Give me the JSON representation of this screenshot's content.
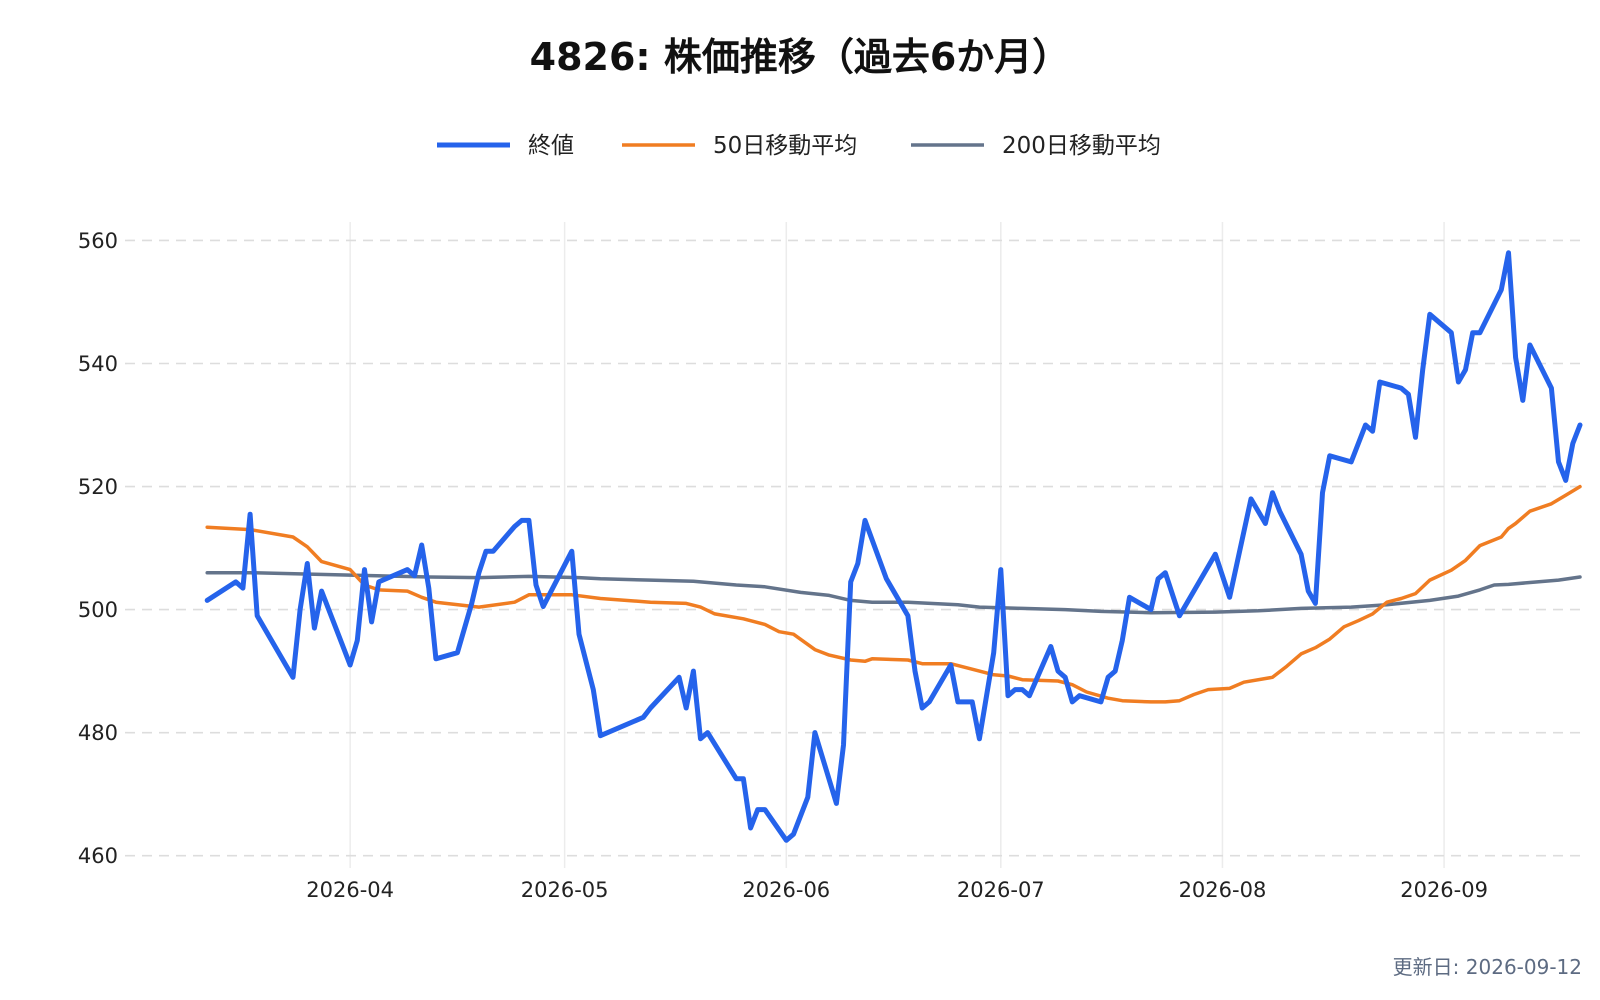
{
  "chart_data": {
    "type": "line",
    "title": "4826: 株価推移（過去6か月）",
    "xlabel": "",
    "ylabel": "",
    "x_range": [
      "2026-03-12",
      "2026-09-12"
    ],
    "ylim": [
      458,
      563
    ],
    "y_ticks": [
      460,
      480,
      500,
      520,
      540,
      560
    ],
    "x_ticks": [
      "2026-04-01",
      "2026-05-01",
      "2026-06-01",
      "2026-07-01",
      "2026-08-01",
      "2026-09-01"
    ],
    "x_tick_labels": [
      "2026-04",
      "2026-05",
      "2026-06",
      "2026-07",
      "2026-08",
      "2026-09"
    ],
    "grid": true,
    "legend_position": "top-center",
    "series": [
      {
        "name": "終値",
        "color": "#2563eb",
        "points": [
          [
            "2026-03-12",
            501.5
          ],
          [
            "2026-03-16",
            504.5
          ],
          [
            "2026-03-17",
            503.5
          ],
          [
            "2026-03-18",
            515.5
          ],
          [
            "2026-03-19",
            499
          ],
          [
            "2026-03-23",
            491
          ],
          [
            "2026-03-24",
            489
          ],
          [
            "2026-03-25",
            500
          ],
          [
            "2026-03-26",
            507.5
          ],
          [
            "2026-03-27",
            497
          ],
          [
            "2026-03-28",
            503
          ],
          [
            "2026-03-31",
            494
          ],
          [
            "2026-04-01",
            491
          ],
          [
            "2026-04-02",
            495
          ],
          [
            "2026-04-03",
            506.5
          ],
          [
            "2026-04-04",
            498
          ],
          [
            "2026-04-05",
            504.5
          ],
          [
            "2026-04-09",
            506.5
          ],
          [
            "2026-04-10",
            505.5
          ],
          [
            "2026-04-11",
            510.5
          ],
          [
            "2026-04-12",
            503.5
          ],
          [
            "2026-04-13",
            492
          ],
          [
            "2026-04-16",
            493
          ],
          [
            "2026-04-18",
            501
          ],
          [
            "2026-04-19",
            506
          ],
          [
            "2026-04-20",
            509.5
          ],
          [
            "2026-04-21",
            509.5
          ],
          [
            "2026-04-24",
            513.5
          ],
          [
            "2026-04-25",
            514.5
          ],
          [
            "2026-04-26",
            514.5
          ],
          [
            "2026-04-27",
            504
          ],
          [
            "2026-04-28",
            500.5
          ],
          [
            "2026-05-02",
            509.5
          ],
          [
            "2026-05-03",
            496
          ],
          [
            "2026-05-05",
            487
          ],
          [
            "2026-05-06",
            479.5
          ],
          [
            "2026-05-12",
            482.5
          ],
          [
            "2026-05-13",
            484
          ],
          [
            "2026-05-17",
            489
          ],
          [
            "2026-05-18",
            484
          ],
          [
            "2026-05-19",
            490
          ],
          [
            "2026-05-20",
            479
          ],
          [
            "2026-05-21",
            480
          ],
          [
            "2026-05-25",
            472.5
          ],
          [
            "2026-05-26",
            472.5
          ],
          [
            "2026-05-27",
            464.5
          ],
          [
            "2026-05-28",
            467.5
          ],
          [
            "2026-05-29",
            467.5
          ],
          [
            "2026-06-01",
            462.5
          ],
          [
            "2026-06-02",
            463.5
          ],
          [
            "2026-06-04",
            469.5
          ],
          [
            "2026-06-05",
            480
          ],
          [
            "2026-06-08",
            468.5
          ],
          [
            "2026-06-09",
            478
          ],
          [
            "2026-06-10",
            504.5
          ],
          [
            "2026-06-11",
            507.5
          ],
          [
            "2026-06-12",
            514.5
          ],
          [
            "2026-06-15",
            505
          ],
          [
            "2026-06-18",
            499
          ],
          [
            "2026-06-19",
            490
          ],
          [
            "2026-06-20",
            484
          ],
          [
            "2026-06-21",
            485
          ],
          [
            "2026-06-24",
            491
          ],
          [
            "2026-06-25",
            485
          ],
          [
            "2026-06-27",
            485
          ],
          [
            "2026-06-28",
            479
          ],
          [
            "2026-06-30",
            493
          ],
          [
            "2026-07-01",
            506.5
          ],
          [
            "2026-07-02",
            486
          ],
          [
            "2026-07-03",
            487
          ],
          [
            "2026-07-04",
            487
          ],
          [
            "2026-07-05",
            486
          ],
          [
            "2026-07-08",
            494
          ],
          [
            "2026-07-09",
            490
          ],
          [
            "2026-07-10",
            489
          ],
          [
            "2026-07-11",
            485
          ],
          [
            "2026-07-12",
            486
          ],
          [
            "2026-07-15",
            485
          ],
          [
            "2026-07-16",
            489
          ],
          [
            "2026-07-17",
            490
          ],
          [
            "2026-07-18",
            495
          ],
          [
            "2026-07-19",
            502
          ],
          [
            "2026-07-22",
            500
          ],
          [
            "2026-07-23",
            505
          ],
          [
            "2026-07-24",
            506
          ],
          [
            "2026-07-26",
            499
          ],
          [
            "2026-07-31",
            509
          ],
          [
            "2026-08-02",
            502
          ],
          [
            "2026-08-05",
            518
          ],
          [
            "2026-08-07",
            514
          ],
          [
            "2026-08-08",
            519
          ],
          [
            "2026-08-09",
            516
          ],
          [
            "2026-08-12",
            509
          ],
          [
            "2026-08-13",
            503
          ],
          [
            "2026-08-14",
            501
          ],
          [
            "2026-08-15",
            519
          ],
          [
            "2026-08-16",
            525
          ],
          [
            "2026-08-19",
            524
          ],
          [
            "2026-08-21",
            530
          ],
          [
            "2026-08-22",
            529
          ],
          [
            "2026-08-23",
            537
          ],
          [
            "2026-08-26",
            536
          ],
          [
            "2026-08-27",
            535
          ],
          [
            "2026-08-28",
            528
          ],
          [
            "2026-08-29",
            539
          ],
          [
            "2026-08-30",
            548
          ],
          [
            "2026-09-02",
            545
          ],
          [
            "2026-09-03",
            537
          ],
          [
            "2026-09-04",
            539
          ],
          [
            "2026-09-05",
            545
          ],
          [
            "2026-09-06",
            545
          ],
          [
            "2026-09-09",
            552
          ],
          [
            "2026-09-10",
            558
          ],
          [
            "2026-09-11",
            541
          ],
          [
            "2026-09-12",
            534
          ],
          [
            "2026-09-13",
            543
          ],
          [
            "2026-09-16",
            536
          ],
          [
            "2026-09-17",
            524
          ],
          [
            "2026-09-18",
            521
          ],
          [
            "2026-09-19",
            527
          ],
          [
            "2026-09-20",
            530
          ]
        ]
      },
      {
        "name": "50日移動平均",
        "color": "#f07d22",
        "points": [
          [
            "2026-03-12",
            513.4
          ],
          [
            "2026-03-18",
            513
          ],
          [
            "2026-03-24",
            511.8
          ],
          [
            "2026-03-26",
            510.2
          ],
          [
            "2026-03-28",
            507.8
          ],
          [
            "2026-04-01",
            506.5
          ],
          [
            "2026-04-03",
            504
          ],
          [
            "2026-04-05",
            503.2
          ],
          [
            "2026-04-09",
            503
          ],
          [
            "2026-04-11",
            502
          ],
          [
            "2026-04-13",
            501.2
          ],
          [
            "2026-04-19",
            500.4
          ],
          [
            "2026-04-24",
            501.2
          ],
          [
            "2026-04-26",
            502.4
          ],
          [
            "2026-05-02",
            502.4
          ],
          [
            "2026-05-06",
            501.8
          ],
          [
            "2026-05-13",
            501.2
          ],
          [
            "2026-05-18",
            501
          ],
          [
            "2026-05-20",
            500.4
          ],
          [
            "2026-05-22",
            499.3
          ],
          [
            "2026-05-26",
            498.5
          ],
          [
            "2026-05-29",
            497.6
          ],
          [
            "2026-05-31",
            496.4
          ],
          [
            "2026-06-02",
            496
          ],
          [
            "2026-06-05",
            493.5
          ],
          [
            "2026-06-07",
            492.6
          ],
          [
            "2026-06-10",
            491.8
          ],
          [
            "2026-06-12",
            491.6
          ],
          [
            "2026-06-13",
            492
          ],
          [
            "2026-06-18",
            491.8
          ],
          [
            "2026-06-20",
            491.2
          ],
          [
            "2026-06-24",
            491.2
          ],
          [
            "2026-06-28",
            490
          ],
          [
            "2026-06-30",
            489.4
          ],
          [
            "2026-07-02",
            489.2
          ],
          [
            "2026-07-04",
            488.6
          ],
          [
            "2026-07-09",
            488.4
          ],
          [
            "2026-07-11",
            487.8
          ],
          [
            "2026-07-13",
            486.6
          ],
          [
            "2026-07-16",
            485.6
          ],
          [
            "2026-07-18",
            485.2
          ],
          [
            "2026-07-22",
            485
          ],
          [
            "2026-07-24",
            485
          ],
          [
            "2026-07-26",
            485.2
          ],
          [
            "2026-07-28",
            486.2
          ],
          [
            "2026-07-30",
            487
          ],
          [
            "2026-08-02",
            487.2
          ],
          [
            "2026-08-04",
            488.2
          ],
          [
            "2026-08-08",
            489
          ],
          [
            "2026-08-10",
            490.8
          ],
          [
            "2026-08-12",
            492.8
          ],
          [
            "2026-08-14",
            493.8
          ],
          [
            "2026-08-16",
            495.2
          ],
          [
            "2026-08-18",
            497.2
          ],
          [
            "2026-08-20",
            498.2
          ],
          [
            "2026-08-22",
            499.3
          ],
          [
            "2026-08-24",
            501.2
          ],
          [
            "2026-08-26",
            501.8
          ],
          [
            "2026-08-28",
            502.6
          ],
          [
            "2026-08-30",
            504.8
          ],
          [
            "2026-09-02",
            506.4
          ],
          [
            "2026-09-04",
            508
          ],
          [
            "2026-09-06",
            510.4
          ],
          [
            "2026-09-09",
            511.8
          ],
          [
            "2026-09-10",
            513.2
          ],
          [
            "2026-09-11",
            514
          ],
          [
            "2026-09-13",
            516
          ],
          [
            "2026-09-16",
            517.2
          ],
          [
            "2026-09-18",
            518.6
          ],
          [
            "2026-09-20",
            520
          ]
        ]
      },
      {
        "name": "200日移動平均",
        "color": "#64748b",
        "points": [
          [
            "2026-03-12",
            506
          ],
          [
            "2026-03-18",
            506
          ],
          [
            "2026-04-01",
            505.6
          ],
          [
            "2026-04-12",
            505.3
          ],
          [
            "2026-04-19",
            505.2
          ],
          [
            "2026-04-26",
            505.4
          ],
          [
            "2026-05-03",
            505.2
          ],
          [
            "2026-05-06",
            505
          ],
          [
            "2026-05-13",
            504.8
          ],
          [
            "2026-05-19",
            504.6
          ],
          [
            "2026-05-25",
            504
          ],
          [
            "2026-05-29",
            503.7
          ],
          [
            "2026-06-03",
            502.8
          ],
          [
            "2026-06-07",
            502.3
          ],
          [
            "2026-06-10",
            501.5
          ],
          [
            "2026-06-13",
            501.2
          ],
          [
            "2026-06-18",
            501.2
          ],
          [
            "2026-06-25",
            500.8
          ],
          [
            "2026-06-28",
            500.4
          ],
          [
            "2026-07-04",
            500.2
          ],
          [
            "2026-07-10",
            500
          ],
          [
            "2026-07-15",
            499.7
          ],
          [
            "2026-07-22",
            499.5
          ],
          [
            "2026-07-31",
            499.6
          ],
          [
            "2026-08-06",
            499.8
          ],
          [
            "2026-08-12",
            500.2
          ],
          [
            "2026-08-19",
            500.4
          ],
          [
            "2026-08-24",
            500.8
          ],
          [
            "2026-08-30",
            501.5
          ],
          [
            "2026-09-03",
            502.2
          ],
          [
            "2026-09-06",
            503.2
          ],
          [
            "2026-09-08",
            504
          ],
          [
            "2026-09-10",
            504.1
          ],
          [
            "2026-09-13",
            504.4
          ],
          [
            "2026-09-17",
            504.8
          ],
          [
            "2026-09-20",
            505.3
          ]
        ]
      }
    ],
    "footer": "更新日: 2026-09-12"
  }
}
